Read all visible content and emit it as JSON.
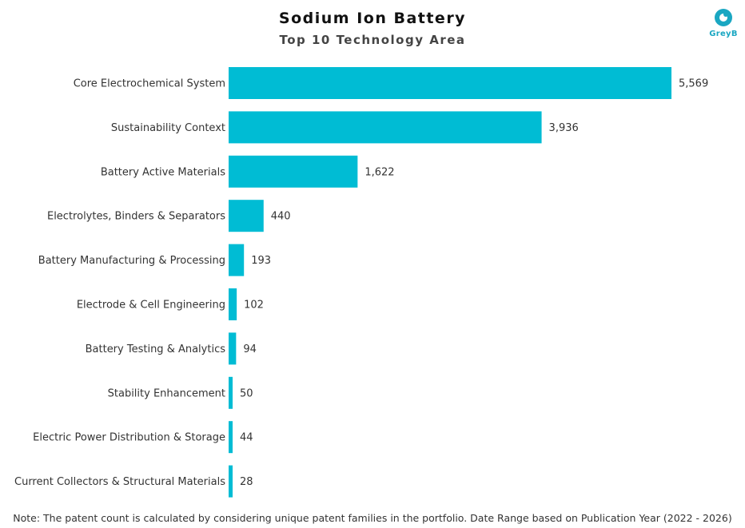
{
  "header": {
    "title": "Sodium Ion Battery",
    "subtitle": "Top 10 Technology Area",
    "logo_text": "GreyB"
  },
  "colors": {
    "bar": "#00bcd4",
    "logo": "#1aa7c2"
  },
  "chart_data": {
    "type": "bar",
    "orientation": "horizontal",
    "title": "Sodium Ion Battery",
    "subtitle": "Top 10 Technology Area",
    "xlabel": "",
    "ylabel": "",
    "xlim": [
      0,
      5569
    ],
    "grid": false,
    "categories": [
      "Core Electrochemical System",
      "Sustainability Context",
      "Battery Active Materials",
      "Electrolytes, Binders & Separators",
      "Battery Manufacturing & Processing",
      "Electrode & Cell Engineering",
      "Battery Testing & Analytics",
      "Stability Enhancement",
      "Electric Power Distribution & Storage",
      "Current Collectors & Structural Materials"
    ],
    "values": [
      5569,
      3936,
      1622,
      440,
      193,
      102,
      94,
      50,
      44,
      28
    ],
    "value_labels": [
      "5,569",
      "3,936",
      "1,622",
      "440",
      "193",
      "102",
      "94",
      "50",
      "44",
      "28"
    ]
  },
  "footer": {
    "note": "Note: The patent count is calculated by considering unique patent families in the portfolio. Date Range based on Publication Year (2022 - 2026)"
  }
}
